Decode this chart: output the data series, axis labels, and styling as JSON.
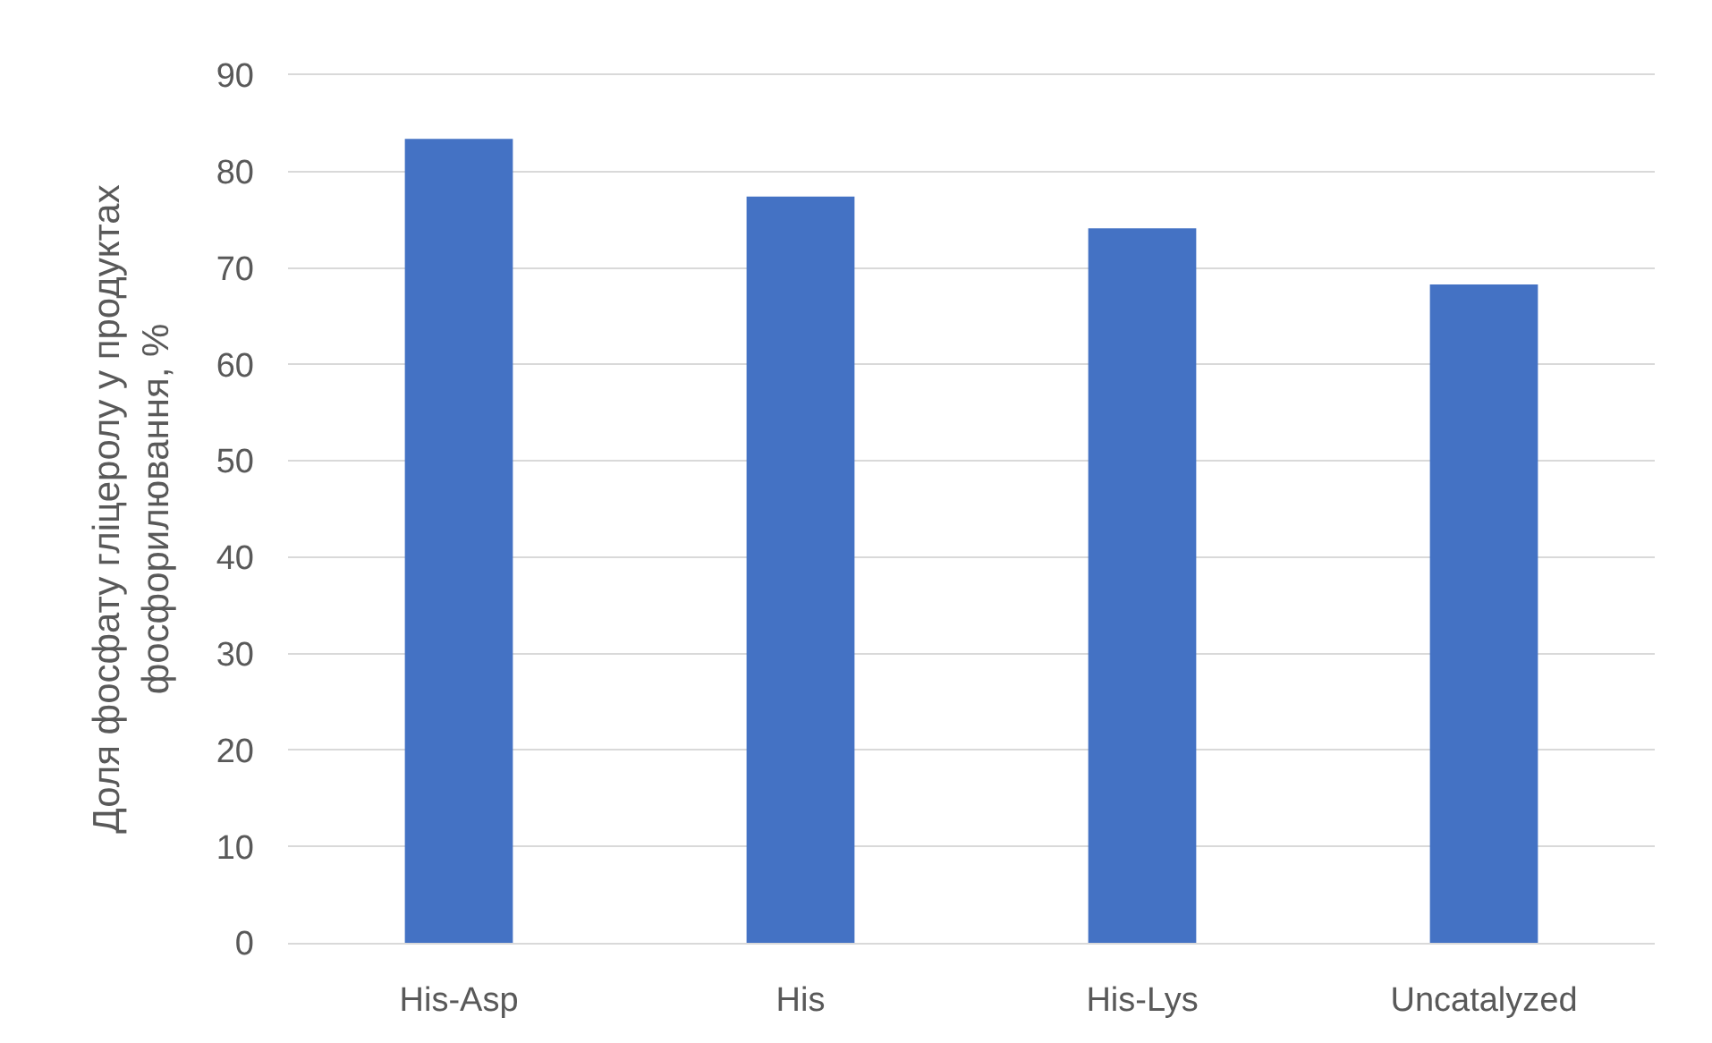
{
  "chart_data": {
    "type": "bar",
    "ylabel": "Доля фосфату гліцеролу у продуктах фосфорилювання, %",
    "categories": [
      "His-Asp",
      "His",
      "His-Lys",
      "Uncatalyzed"
    ],
    "values": [
      83.4,
      77.4,
      74.1,
      68.3
    ],
    "color": "#4472c4",
    "ylim": [
      0,
      90
    ],
    "yticks": [
      0,
      10,
      20,
      30,
      40,
      50,
      60,
      70,
      80,
      90
    ],
    "grid": "y"
  }
}
